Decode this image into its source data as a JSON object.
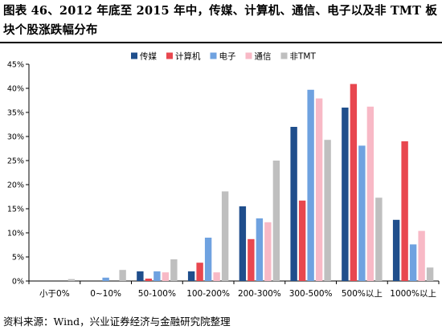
{
  "title": "图表 46、2012 年底至 2015 年中，传媒、计算机、通信、电子以及非 TMT 板块个股涨跌幅分布",
  "source": "资料来源：Wind，兴业证券经济与金融研究院整理",
  "chart_data": {
    "type": "bar",
    "title": "",
    "xlabel": "",
    "ylabel": "",
    "ylim": [
      0,
      45
    ],
    "yticks": [
      "0%",
      "5%",
      "10%",
      "15%",
      "20%",
      "25%",
      "30%",
      "35%",
      "40%",
      "45%"
    ],
    "grid": false,
    "legend_position": "top-center",
    "categories": [
      "小于0%",
      "0~10%",
      "50-100%",
      "100-200%",
      "200-300%",
      "300-500%",
      "500%以上",
      "1000%以上"
    ],
    "series": [
      {
        "name": "传媒",
        "color": "#1f4e8c",
        "values": [
          0,
          0,
          2.0,
          2.0,
          15.5,
          32.0,
          36.0,
          12.7
        ]
      },
      {
        "name": "计算机",
        "color": "#e8474f",
        "values": [
          0,
          0,
          0.5,
          3.8,
          8.7,
          16.7,
          40.9,
          29.0
        ]
      },
      {
        "name": "电子",
        "color": "#6fa2e0",
        "values": [
          0,
          0.7,
          2.0,
          9.0,
          13.0,
          39.7,
          28.1,
          7.6
        ]
      },
      {
        "name": "通信",
        "color": "#f8b9c6",
        "values": [
          0,
          0,
          1.8,
          1.8,
          12.2,
          37.9,
          36.2,
          10.4
        ]
      },
      {
        "name": "非TMT",
        "color": "#bfbfbf",
        "values": [
          0.4,
          2.3,
          4.5,
          18.6,
          25.0,
          29.3,
          17.3,
          2.8
        ]
      }
    ]
  }
}
